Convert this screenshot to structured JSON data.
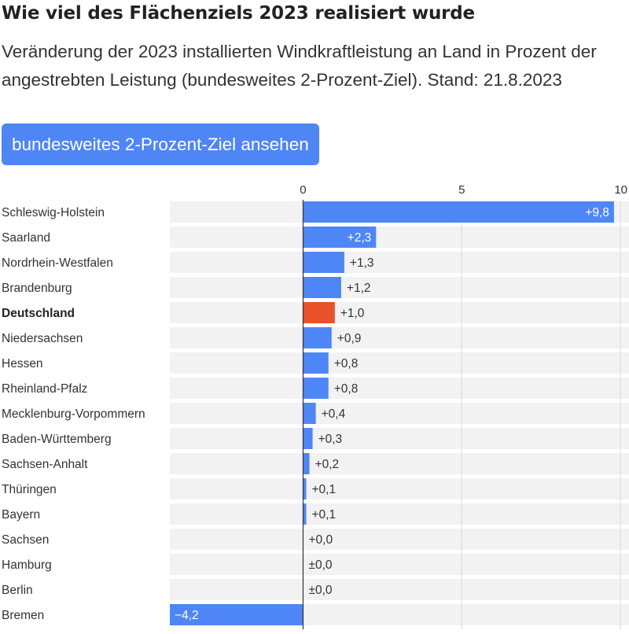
{
  "title": "Wie viel des Flächenziels 2023 realisiert wurde",
  "subtitle": "Veränderung der 2023 installierten Windkraftleistung an Land in Prozent der angestrebten Leistung (bundesweites 2-Prozent-Ziel). Stand: 21.8.2023",
  "button_label": "bundesweites 2-Prozent-Ziel ansehen",
  "colors": {
    "bar": "#4f86f6",
    "highlight": "#e8512a",
    "row_bg": "#f2f2f2"
  },
  "chart_data": {
    "type": "bar",
    "orientation": "horizontal",
    "xlim": [
      -4.2,
      10
    ],
    "ticks": [
      0,
      5,
      10
    ],
    "tick_labels": [
      "0",
      "5",
      "10"
    ],
    "grid": true,
    "categories": [
      "Schleswig-Holstein",
      "Saarland",
      "Nordrhein-Westfalen",
      "Brandenburg",
      "Deutschland",
      "Niedersachsen",
      "Hessen",
      "Rheinland-Pfalz",
      "Mecklenburg-Vorpommern",
      "Baden-Württemberg",
      "Sachsen-Anhalt",
      "Thüringen",
      "Bayern",
      "Sachsen",
      "Hamburg",
      "Berlin",
      "Bremen"
    ],
    "values": [
      9.8,
      2.3,
      1.3,
      1.2,
      1.0,
      0.9,
      0.8,
      0.8,
      0.4,
      0.3,
      0.2,
      0.1,
      0.1,
      0.0,
      0.0,
      0.0,
      -4.2
    ],
    "value_labels": [
      "+9,8",
      "+2,3",
      "+1,3",
      "+1,2",
      "+1,0",
      "+0,9",
      "+0,8",
      "+0,8",
      "+0,4",
      "+0,3",
      "+0,2",
      "+0,1",
      "+0,1",
      "+0,0",
      "±0,0",
      "±0,0",
      "−4,2"
    ],
    "highlight": "Deutschland"
  }
}
